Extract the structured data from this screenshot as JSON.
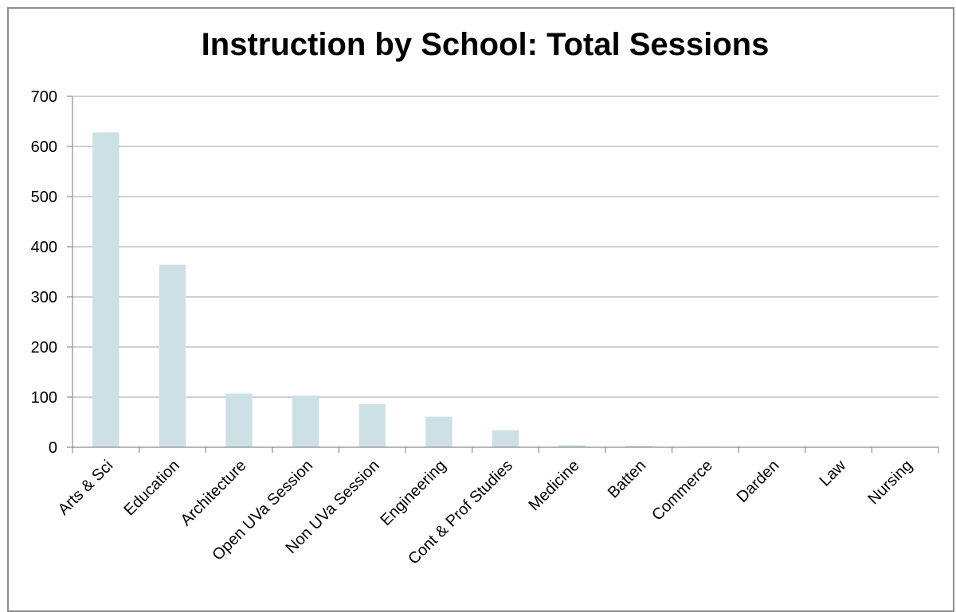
{
  "chart_data": {
    "type": "bar",
    "title": "Instruction by School: Total Sessions",
    "xlabel": "",
    "ylabel": "",
    "ylim": [
      0,
      700
    ],
    "yticks": [
      0,
      100,
      200,
      300,
      400,
      500,
      600,
      700
    ],
    "grid": true,
    "legend": "none",
    "categories": [
      "Arts & Sci",
      "Education",
      "Architecture",
      "Open UVa Session",
      "Non UVa Session",
      "Engineering",
      "Cont & Prof Studies",
      "Medicine",
      "Batten",
      "Commerce",
      "Darden",
      "Law",
      "Nursing"
    ],
    "values": [
      628,
      364,
      107,
      103,
      86,
      61,
      34,
      4,
      3,
      1,
      0,
      0,
      0
    ],
    "colors": {
      "bar": "#cde0e6",
      "grid": "#b3b3b3",
      "axis": "#8c8c8c"
    }
  }
}
